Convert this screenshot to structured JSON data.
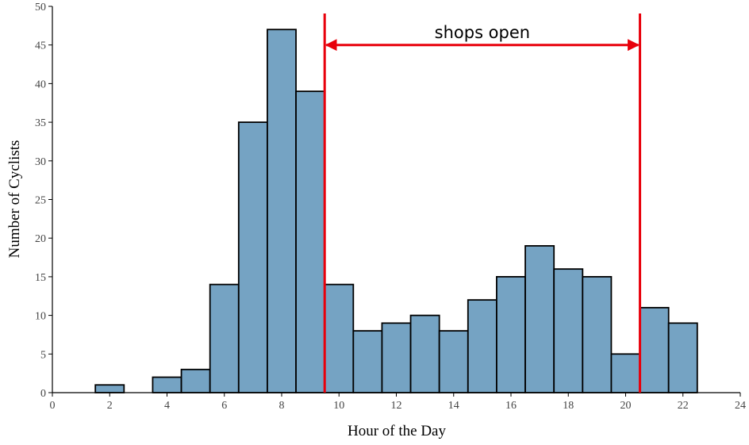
{
  "chart_data": {
    "type": "bar",
    "xlabel": "Hour of the Day",
    "ylabel": "Number of Cyclists",
    "xlim": [
      0,
      24
    ],
    "ylim": [
      0,
      50
    ],
    "xticks": [
      0,
      2,
      4,
      6,
      8,
      10,
      12,
      14,
      16,
      18,
      20,
      22,
      24
    ],
    "yticks": [
      0,
      5,
      10,
      15,
      20,
      25,
      30,
      35,
      40,
      45,
      50
    ],
    "x": [
      2,
      4,
      5,
      6,
      7,
      8,
      9,
      10,
      11,
      12,
      13,
      14,
      15,
      16,
      17,
      18,
      19,
      20,
      21,
      22
    ],
    "values": [
      1,
      2,
      3,
      14,
      35,
      47,
      39,
      14,
      8,
      9,
      10,
      8,
      12,
      15,
      19,
      16,
      15,
      5,
      11,
      9
    ],
    "bin_width": 1,
    "grid": false,
    "annotations": [
      {
        "text": "shops open",
        "x_start": 9.5,
        "x_end": 20.5,
        "y": 45
      }
    ]
  },
  "colors": {
    "bar_fill": "#75a3c3",
    "bar_stroke": "#000000",
    "annotation": "#e8000b"
  }
}
